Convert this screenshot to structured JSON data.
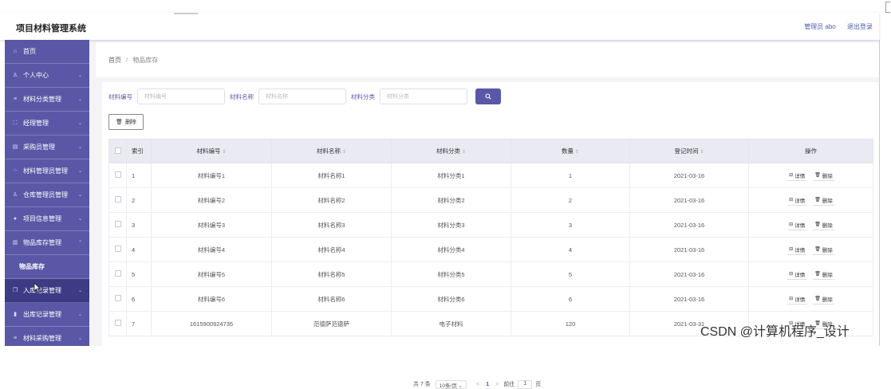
{
  "app": {
    "title": "项目材料管理系统"
  },
  "header": {
    "user_label": "管理员 abo",
    "logout": "退出登录"
  },
  "sidebar": {
    "items": [
      {
        "label": "首页",
        "icon": "home-icon",
        "glyph": "⌂",
        "arrow": ""
      },
      {
        "label": "个人中心",
        "icon": "user-icon",
        "glyph": "♙",
        "arrow": "⌄"
      },
      {
        "label": "材料分类管理",
        "icon": "list-icon",
        "glyph": "≡",
        "arrow": "⌄"
      },
      {
        "label": "经理管理",
        "icon": "frame-icon",
        "glyph": "⛶",
        "arrow": "⌄"
      },
      {
        "label": "采购员管理",
        "icon": "card-icon",
        "glyph": "▤",
        "arrow": "⌄"
      },
      {
        "label": "材料管理员管理",
        "icon": "grid-icon",
        "glyph": "⁘",
        "arrow": "⌄"
      },
      {
        "label": "仓库管理员管理",
        "icon": "user-icon",
        "glyph": "♙",
        "arrow": "⌄"
      },
      {
        "label": "项目信息管理",
        "icon": "pin-icon",
        "glyph": "●",
        "arrow": "⌄"
      },
      {
        "label": "物品库存管理",
        "icon": "box-icon",
        "glyph": "▥",
        "arrow": "⌃"
      },
      {
        "label": "物品库存",
        "icon": "",
        "glyph": "",
        "arrow": ""
      },
      {
        "label": "入库记录管理",
        "icon": "copy-icon",
        "glyph": "❐",
        "arrow": "⌄"
      },
      {
        "label": "出库记录管理",
        "icon": "bar-icon",
        "glyph": "▮",
        "arrow": "⌄"
      },
      {
        "label": "材料采购管理",
        "icon": "list-icon",
        "glyph": "≡",
        "arrow": "⌄"
      }
    ]
  },
  "breadcrumb": {
    "home": "首页",
    "separator": "/",
    "current": "物品库存"
  },
  "search": {
    "fields": [
      {
        "label": "材料编号",
        "placeholder": "材料编号"
      },
      {
        "label": "材料名称",
        "placeholder": "材料名称"
      },
      {
        "label": "材料分类",
        "placeholder": "材料分类"
      }
    ]
  },
  "toolbar": {
    "delete_label": "删除"
  },
  "table": {
    "headers": {
      "index": "索引",
      "code": "材料编号",
      "name": "材料名称",
      "category": "材料分类",
      "qty": "数量",
      "date": "登记时间",
      "ops": "操作"
    },
    "detail_label": "详情",
    "delete_label": "删除",
    "rows": [
      {
        "index": "1",
        "code": "材料编号1",
        "name": "材料名称1",
        "category": "材料分类1",
        "qty": "1",
        "date": "2021-03-16"
      },
      {
        "index": "2",
        "code": "材料编号2",
        "name": "材料名称2",
        "category": "材料分类2",
        "qty": "2",
        "date": "2021-03-16"
      },
      {
        "index": "3",
        "code": "材料编号3",
        "name": "材料名称3",
        "category": "材料分类3",
        "qty": "3",
        "date": "2021-03-16"
      },
      {
        "index": "4",
        "code": "材料编号4",
        "name": "材料名称4",
        "category": "材料分类4",
        "qty": "4",
        "date": "2021-03-16"
      },
      {
        "index": "5",
        "code": "材料编号5",
        "name": "材料名称5",
        "category": "材料分类5",
        "qty": "5",
        "date": "2021-03-16"
      },
      {
        "index": "6",
        "code": "材料编号6",
        "name": "材料名称6",
        "category": "材料分类6",
        "qty": "6",
        "date": "2021-03-16"
      },
      {
        "index": "7",
        "code": "1615900924735",
        "name": "范德萨范德萨",
        "category": "电子材料",
        "qty": "120",
        "date": "2021-03-31"
      }
    ]
  },
  "pagination": {
    "total": "共 7 条",
    "page_size": "10条/页 ⌄",
    "prev": "<",
    "current": "1",
    "next": ">",
    "goto": "前往",
    "goto_value": "1",
    "page_suffix": "页"
  },
  "watermark": "CSDN @计算机程序_设计",
  "colors": {
    "accent": "#5a58a6",
    "sidebar_active": "#3d3b84",
    "header_bg": "#eaeaf2"
  }
}
